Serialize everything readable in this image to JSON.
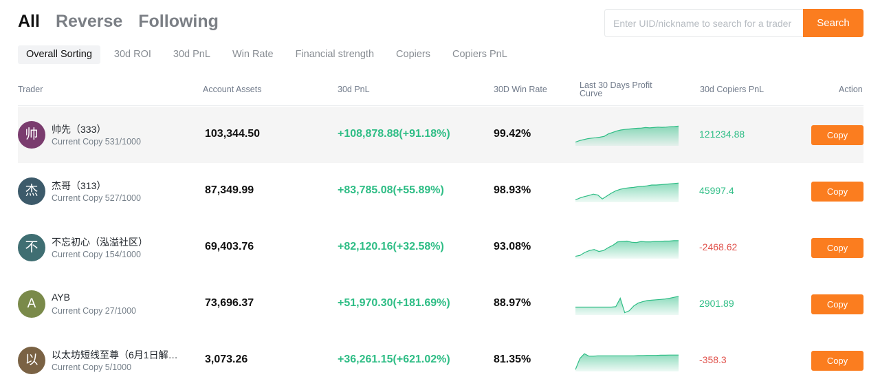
{
  "main_tabs": [
    {
      "label": "All",
      "active": true
    },
    {
      "label": "Reverse",
      "active": false
    },
    {
      "label": "Following",
      "active": false
    }
  ],
  "search": {
    "placeholder": "Enter UID/nickname to search for a trader",
    "button_label": "Search"
  },
  "sort_tabs": [
    {
      "label": "Overall Sorting",
      "active": true
    },
    {
      "label": "30d ROI",
      "active": false
    },
    {
      "label": "30d PnL",
      "active": false
    },
    {
      "label": "Win Rate",
      "active": false
    },
    {
      "label": "Financial strength",
      "active": false
    },
    {
      "label": "Copiers",
      "active": false
    },
    {
      "label": "Copiers PnL",
      "active": false
    }
  ],
  "columns": {
    "trader": "Trader",
    "assets": "Account Assets",
    "pnl": "30d PnL",
    "winrate": "30D Win Rate",
    "curve_line1": "Last 30 Days Profit",
    "curve_line2": "Curve",
    "copiers_pnl": "30d Copiers PnL",
    "action": "Action"
  },
  "colors": {
    "accent": "#fb7d1f",
    "positive": "#2ebd85",
    "negative": "#e0524c"
  },
  "traders": [
    {
      "avatar_char": "帅",
      "avatar_color": "#7a3c6e",
      "name": "帅先（333）",
      "copy_text": "Current Copy 531/1000",
      "assets": "103,344.50",
      "pnl": "+108,878.88(+91.18%)",
      "winrate": "99.42%",
      "copiers_pnl": "121234.88",
      "copiers_pnl_sign": "pos",
      "action_label": "Copy",
      "curve": [
        0.12,
        0.2,
        0.25,
        0.3,
        0.33,
        0.35,
        0.38,
        0.42,
        0.55,
        0.62,
        0.7,
        0.75,
        0.78,
        0.8,
        0.82,
        0.84,
        0.85,
        0.88,
        0.86,
        0.88,
        0.9,
        0.89,
        0.9,
        0.92,
        0.93,
        0.95
      ]
    },
    {
      "avatar_char": "杰",
      "avatar_color": "#3c5a6a",
      "name": "杰哥（313）",
      "copy_text": "Current Copy 527/1000",
      "assets": "87,349.99",
      "pnl": "+83,785.08(+55.89%)",
      "winrate": "98.93%",
      "copiers_pnl": "45997.4",
      "copiers_pnl_sign": "pos",
      "action_label": "Copy",
      "curve": [
        0.05,
        0.15,
        0.22,
        0.28,
        0.35,
        0.3,
        0.1,
        0.25,
        0.4,
        0.52,
        0.6,
        0.65,
        0.68,
        0.7,
        0.74,
        0.75,
        0.78,
        0.82,
        0.82,
        0.84,
        0.86,
        0.88,
        0.9,
        0.92
      ]
    },
    {
      "avatar_char": "不",
      "avatar_color": "#3f6e72",
      "name": "不忘初心（泓溢社区）",
      "copy_text": "Current Copy 154/1000",
      "assets": "69,403.76",
      "pnl": "+82,120.16(+32.58%)",
      "winrate": "93.08%",
      "copiers_pnl": "-2468.62",
      "copiers_pnl_sign": "neg",
      "action_label": "Copy",
      "curve": [
        0.05,
        0.1,
        0.25,
        0.35,
        0.4,
        0.3,
        0.35,
        0.5,
        0.62,
        0.8,
        0.82,
        0.84,
        0.78,
        0.76,
        0.82,
        0.8,
        0.8,
        0.82,
        0.82,
        0.84,
        0.84,
        0.86,
        0.86
      ]
    },
    {
      "avatar_char": "A",
      "avatar_color": "#7a8a4a",
      "name": "AYB",
      "copy_text": "Current Copy 27/1000",
      "assets": "73,696.37",
      "pnl": "+51,970.30(+181.69%)",
      "winrate": "88.97%",
      "copiers_pnl": "2901.89",
      "copiers_pnl_sign": "pos",
      "action_label": "Copy",
      "curve": [
        0.34,
        0.34,
        0.34,
        0.34,
        0.34,
        0.34,
        0.34,
        0.34,
        0.34,
        0.36,
        0.8,
        0.05,
        0.15,
        0.4,
        0.55,
        0.62,
        0.68,
        0.7,
        0.72,
        0.74,
        0.76,
        0.8,
        0.85,
        0.9
      ]
    },
    {
      "avatar_char": "以",
      "avatar_color": "#7a6244",
      "name": "以太坊短线至尊（6月1日解…",
      "copy_text": "Current Copy 5/1000",
      "assets": "3,073.26",
      "pnl": "+36,261.15(+621.02%)",
      "winrate": "81.35%",
      "copiers_pnl": "-358.3",
      "copiers_pnl_sign": "neg",
      "action_label": "Copy",
      "curve": [
        0.02,
        0.6,
        0.85,
        0.72,
        0.72,
        0.74,
        0.74,
        0.74,
        0.74,
        0.74,
        0.74,
        0.74,
        0.74,
        0.74,
        0.75,
        0.75,
        0.76,
        0.76,
        0.76,
        0.77,
        0.77,
        0.78,
        0.78,
        0.78
      ]
    }
  ]
}
